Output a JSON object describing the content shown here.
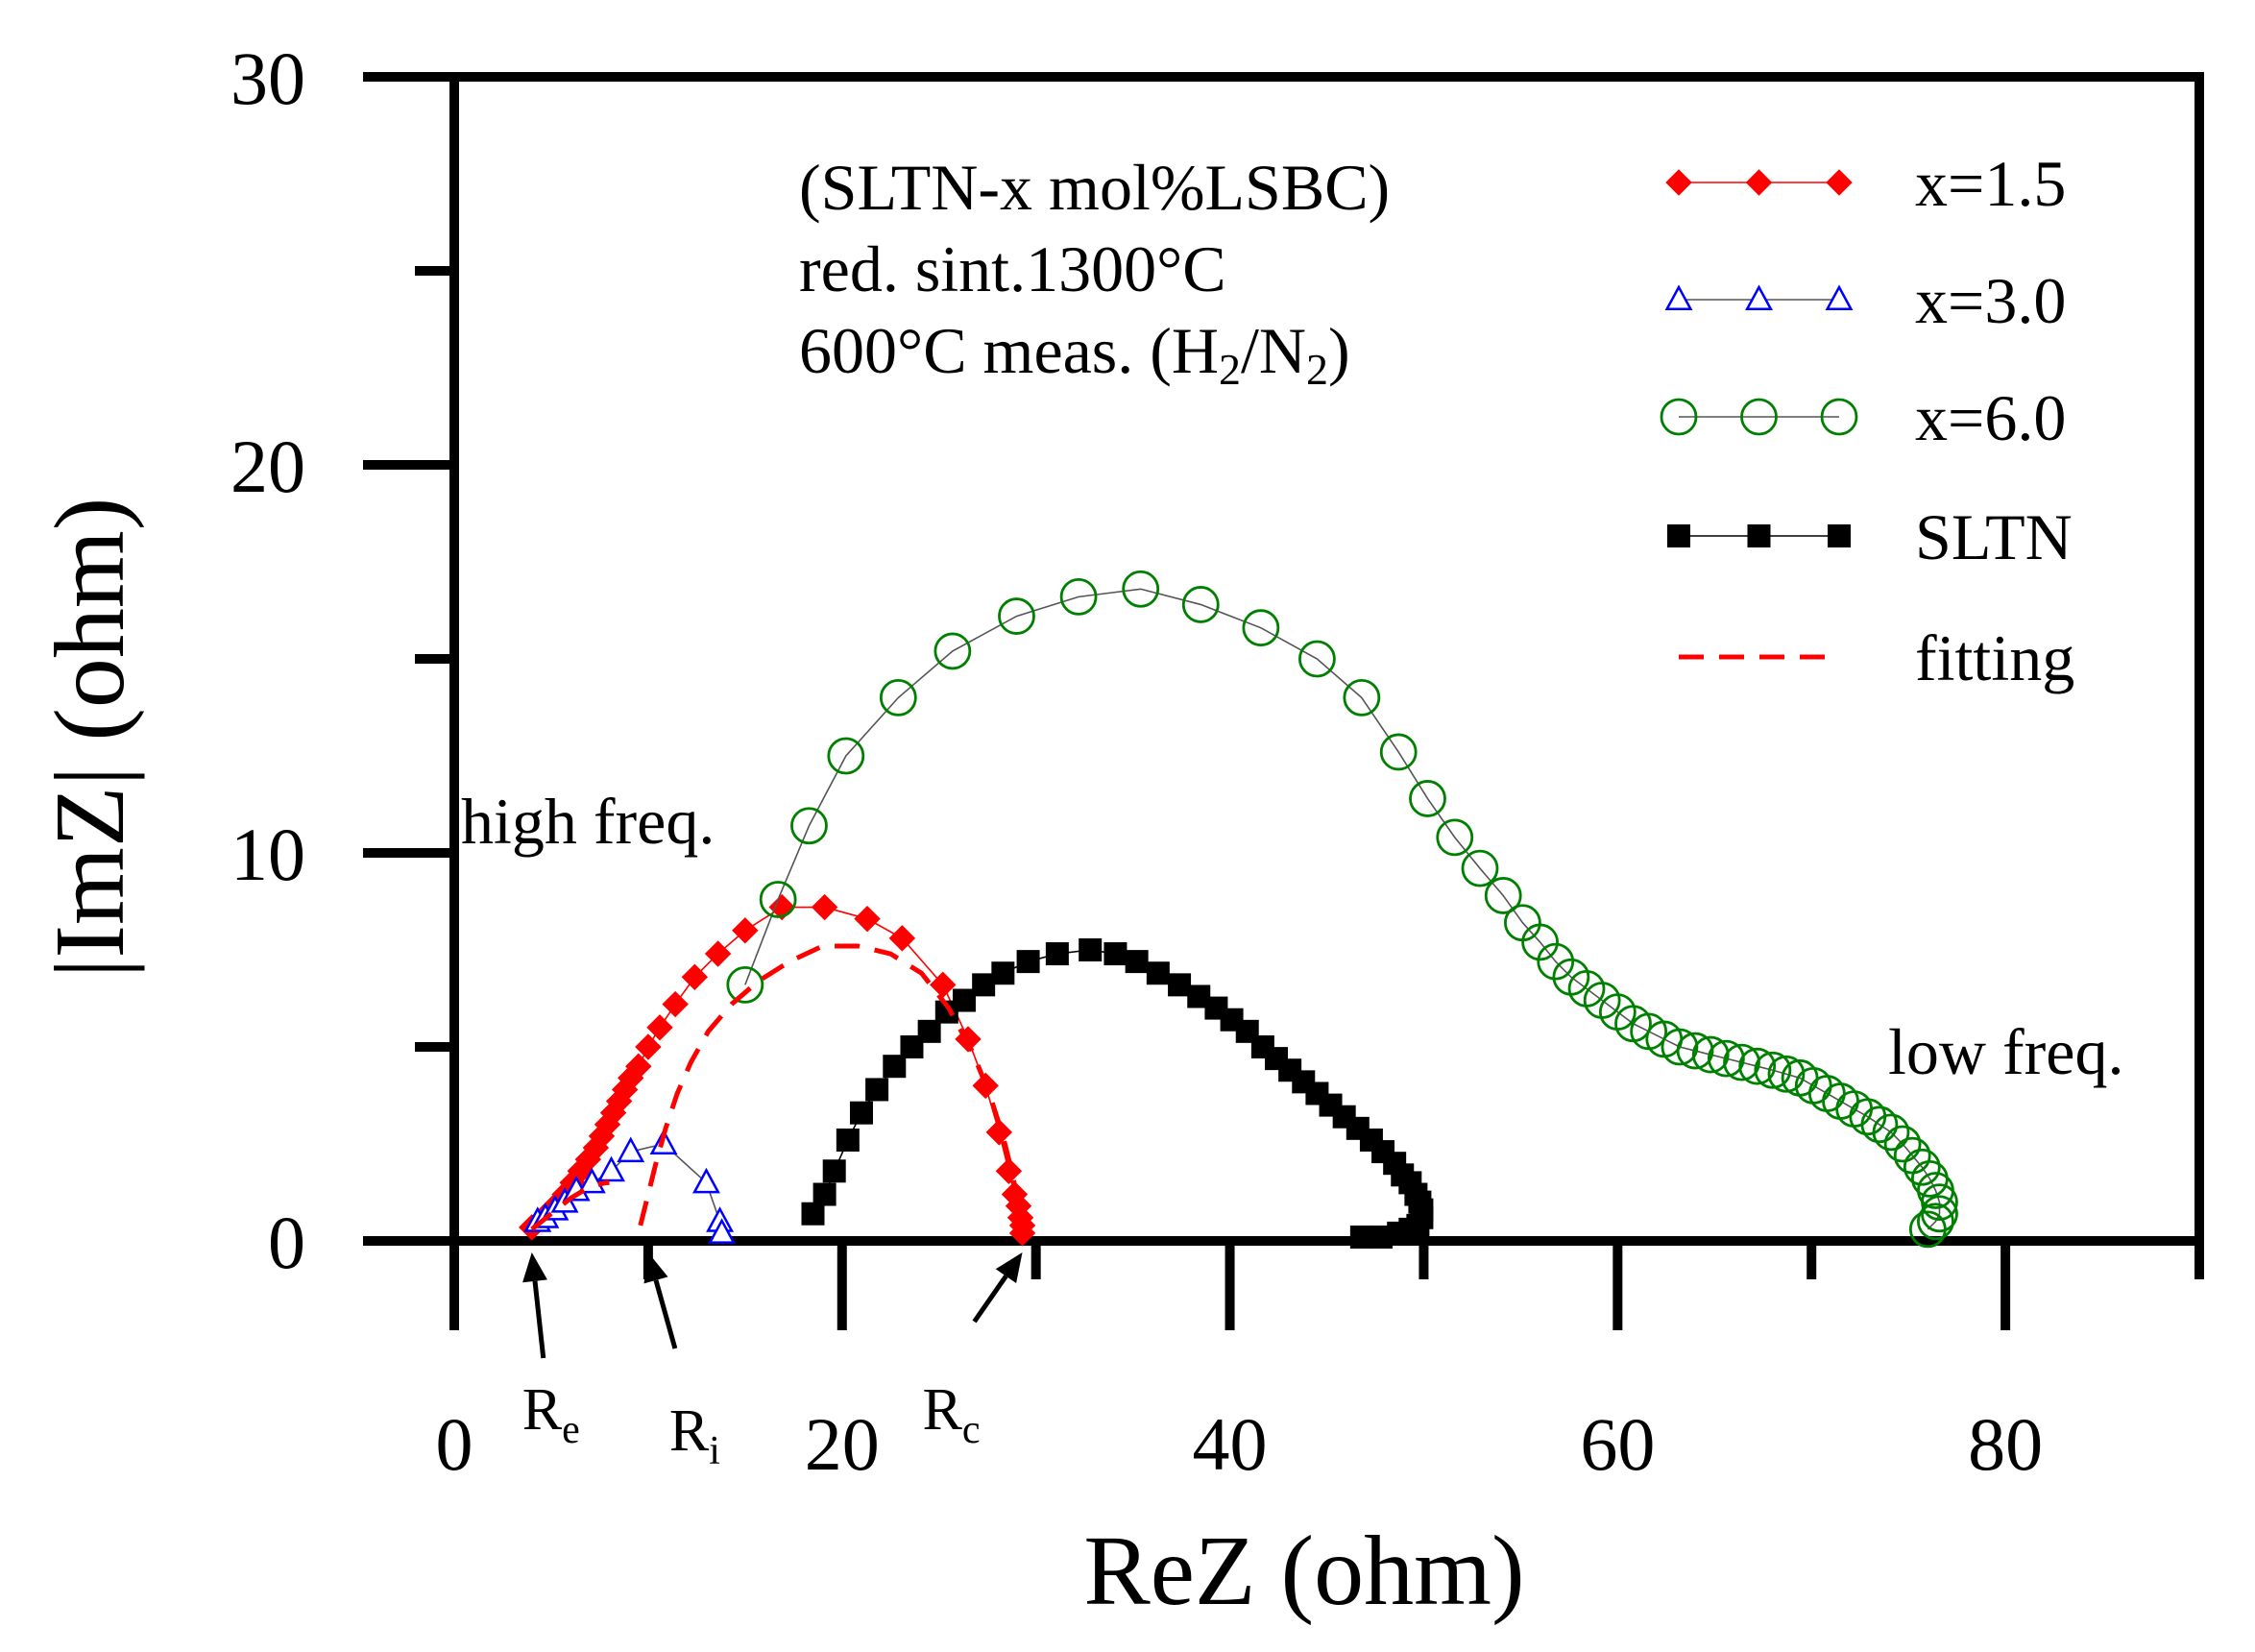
{
  "chart_data": {
    "type": "scatter",
    "xlabel": "ReZ (ohm)",
    "ylabel": "|ImZ| (ohm)",
    "xlim": [
      0,
      90
    ],
    "ylim": [
      0,
      30
    ],
    "xticks": [
      0,
      20,
      40,
      60,
      80
    ],
    "yticks": [
      0,
      10,
      20,
      30
    ],
    "xtick_labels": [
      "0",
      "20",
      "40",
      "60",
      "80"
    ],
    "ytick_labels": [
      "0",
      "10",
      "20",
      "30"
    ],
    "grid": false,
    "legend_position": "top-right",
    "annotation_lines": [
      "(SLTN-x mol%LSBC)",
      "red. sint.1300°C"
    ],
    "annotation_line3": {
      "text": "600°C meas. (H",
      "sub1": "2",
      "mid": "/N",
      "sub2": "2",
      "end": ")"
    },
    "high_freq_label": "high freq.",
    "low_freq_label": "low freq.",
    "markers": [
      {
        "label": "R",
        "sub": "e",
        "x": 4.0
      },
      {
        "label": "R",
        "sub": "i",
        "x": 10.0
      },
      {
        "label": "R",
        "sub": "c",
        "x": 29.3
      }
    ],
    "series": [
      {
        "name": "x=1.5",
        "marker": "diamond-filled",
        "color": "#ff0000",
        "x": [
          4.0,
          4.6,
          5.2,
          5.7,
          6.1,
          6.5,
          6.9,
          7.3,
          7.6,
          7.9,
          8.2,
          8.5,
          8.8,
          9.1,
          9.5,
          10.0,
          10.6,
          11.4,
          12.4,
          13.6,
          15.0,
          16.9,
          19.1,
          21.3,
          23.1,
          25.2,
          26.5,
          27.4,
          28.1,
          28.6,
          28.9,
          29.1,
          29.2,
          29.3,
          29.3
        ],
        "y": [
          0.35,
          0.6,
          0.9,
          1.2,
          1.5,
          1.8,
          2.1,
          2.4,
          2.7,
          3.0,
          3.3,
          3.6,
          3.9,
          4.2,
          4.5,
          5.0,
          5.5,
          6.1,
          6.8,
          7.4,
          8.0,
          8.6,
          8.6,
          8.3,
          7.8,
          6.6,
          5.2,
          4.0,
          2.8,
          1.8,
          1.2,
          0.9,
          0.6,
          0.4,
          0.2
        ]
      },
      {
        "name": "x=3.0",
        "marker": "triangle-open",
        "color": "#0000ff",
        "x": [
          4.3,
          4.7,
          5.2,
          5.7,
          6.3,
          7.1,
          8.1,
          9.1,
          10.8,
          13.0,
          13.7,
          13.8
        ],
        "y": [
          0.5,
          0.6,
          0.8,
          1.0,
          1.3,
          1.5,
          1.8,
          2.3,
          2.5,
          1.5,
          0.5,
          0.2
        ]
      },
      {
        "name": "x=6.0",
        "marker": "circle-open",
        "color": "#008000",
        "x": [
          15.0,
          16.7,
          18.3,
          20.2,
          22.9,
          25.7,
          29.0,
          32.2,
          35.4,
          38.5,
          41.6,
          44.5,
          46.8,
          48.7,
          50.2,
          51.6,
          52.9,
          54.1,
          55.1,
          56.0,
          56.8,
          57.6,
          58.4,
          59.2,
          60.0,
          60.8,
          61.6,
          62.4,
          63.2,
          64.0,
          64.8,
          65.6,
          66.4,
          67.2,
          68.0,
          68.7,
          69.4,
          70.1,
          70.8,
          71.5,
          72.2,
          72.9,
          73.5,
          74.1,
          74.7,
          75.2,
          75.7,
          76.1,
          76.4,
          76.6,
          76.6,
          76.4,
          76.0
        ],
        "y": [
          6.6,
          8.8,
          10.7,
          12.5,
          14.0,
          15.2,
          16.1,
          16.6,
          16.8,
          16.4,
          15.8,
          15.0,
          14.0,
          12.6,
          11.4,
          10.4,
          9.6,
          8.9,
          8.2,
          7.7,
          7.2,
          6.8,
          6.5,
          6.2,
          5.9,
          5.6,
          5.4,
          5.2,
          5.0,
          4.9,
          4.8,
          4.7,
          4.6,
          4.5,
          4.4,
          4.3,
          4.2,
          4.0,
          3.8,
          3.6,
          3.4,
          3.2,
          3.0,
          2.8,
          2.5,
          2.2,
          1.9,
          1.6,
          1.3,
          1.0,
          0.7,
          0.5,
          0.3
        ]
      },
      {
        "name": "SLTN",
        "marker": "square-filled",
        "color": "#000000",
        "x": [
          18.5,
          19.1,
          19.6,
          20.3,
          21.0,
          21.8,
          22.7,
          23.6,
          24.5,
          25.4,
          26.3,
          27.3,
          28.3,
          29.6,
          31.1,
          32.8,
          34.1,
          35.2,
          36.3,
          37.4,
          38.4,
          39.3,
          40.1,
          40.9,
          41.7,
          42.4,
          43.1,
          43.8,
          44.5,
          45.2,
          45.9,
          46.6,
          47.3,
          47.9,
          48.5,
          48.9,
          49.3,
          49.6,
          49.8,
          49.9,
          49.9,
          49.7,
          49.3,
          48.7,
          47.8,
          46.8
        ],
        "y": [
          0.7,
          1.2,
          1.8,
          2.6,
          3.3,
          3.9,
          4.5,
          5.0,
          5.4,
          5.9,
          6.2,
          6.6,
          6.9,
          7.2,
          7.4,
          7.5,
          7.4,
          7.2,
          6.9,
          6.6,
          6.3,
          6.0,
          5.7,
          5.4,
          5.0,
          4.7,
          4.4,
          4.1,
          3.8,
          3.5,
          3.2,
          2.9,
          2.6,
          2.3,
          2.0,
          1.7,
          1.5,
          1.2,
          1.0,
          0.8,
          0.6,
          0.4,
          0.3,
          0.2,
          0.1,
          0.1
        ]
      },
      {
        "name": "fitting",
        "marker": "none",
        "line": "dashed",
        "color": "#ff0000",
        "segments": [
          {
            "x": [
              4.0,
              5.0,
              6.0,
              7.0,
              7.8,
              8.0
            ],
            "y": [
              0.3,
              0.7,
              1.1,
              1.4,
              1.5,
              1.5
            ]
          },
          {
            "x": [
              9.6,
              10.0,
              10.4,
              10.9,
              11.5,
              12.2,
              13.1,
              14.3,
              15.7,
              17.3,
              19.0,
              20.8,
              22.5,
              24.1,
              25.5,
              26.7,
              27.6,
              28.3,
              28.8,
              29.1,
              29.3
            ],
            "y": [
              0.4,
              1.2,
              2.0,
              2.9,
              3.8,
              4.6,
              5.4,
              6.1,
              6.7,
              7.2,
              7.6,
              7.6,
              7.4,
              6.9,
              6.0,
              4.9,
              3.8,
              2.7,
              1.7,
              0.9,
              0.3
            ]
          }
        ]
      }
    ]
  }
}
